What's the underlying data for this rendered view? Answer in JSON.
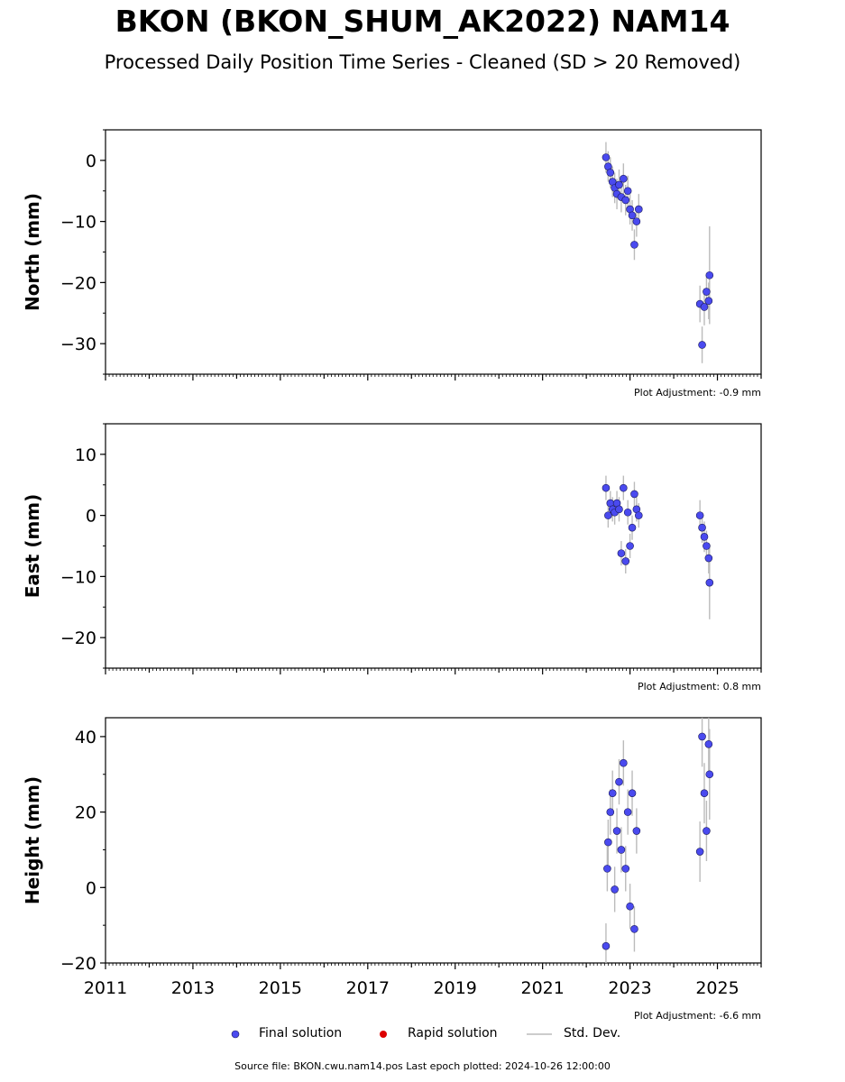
{
  "title": "BKON (BKON_SHUM_AK2022) NAM14",
  "subtitle": "Processed Daily Position Time Series - Cleaned (SD > 20 Removed)",
  "legend": {
    "final_label": "Final solution",
    "rapid_label": "Rapid solution",
    "std_label": "Std. Dev."
  },
  "source_line": "Source file: BKON.cwu.nam14.pos  Last epoch plotted: 2024-10-26 12:00:00",
  "colors": {
    "final": "#4a4aef",
    "final_edge": "#1a1a5a",
    "rapid": "#dd0000",
    "std": "#bbbbbb"
  },
  "chart_data": [
    {
      "type": "scatter",
      "ylabel": "North (mm)",
      "adjustment": "Plot Adjustment: -0.9 mm",
      "xlim": [
        2011,
        2026
      ],
      "ylim": [
        -35,
        5
      ],
      "yticks": [
        0,
        -10,
        -20,
        -30
      ],
      "ytick_labels": [
        "0",
        "−10",
        "−20",
        "−30"
      ],
      "series": [
        {
          "name": "Final solution",
          "x": [
            2022.45,
            2022.5,
            2022.55,
            2022.6,
            2022.65,
            2022.7,
            2022.75,
            2022.8,
            2022.85,
            2022.9,
            2022.95,
            2023.0,
            2023.05,
            2023.1,
            2023.15,
            2023.2,
            2024.6,
            2024.65,
            2024.7,
            2024.75,
            2024.8,
            2024.82
          ],
          "y": [
            0.5,
            -1.0,
            -2.0,
            -3.5,
            -4.5,
            -5.5,
            -4.0,
            -6.0,
            -3.0,
            -6.5,
            -5.0,
            -8.0,
            -9.0,
            -13.8,
            -10.0,
            -8.0,
            -23.5,
            -30.2,
            -24.0,
            -21.5,
            -23.0,
            -18.8
          ],
          "sd": [
            2.5,
            2.5,
            2.5,
            2.5,
            2.5,
            2.5,
            2.5,
            2.5,
            2.5,
            2.5,
            2.5,
            2.5,
            2.5,
            2.5,
            2.5,
            2.5,
            3.0,
            3.0,
            3.0,
            3.0,
            3.0,
            8.0
          ]
        }
      ]
    },
    {
      "type": "scatter",
      "ylabel": "East (mm)",
      "adjustment": "Plot Adjustment: 0.8 mm",
      "xlim": [
        2011,
        2026
      ],
      "ylim": [
        -25,
        15
      ],
      "yticks": [
        10,
        0,
        -10,
        -20
      ],
      "ytick_labels": [
        "10",
        "0",
        "−10",
        "−20"
      ],
      "series": [
        {
          "name": "Final solution",
          "x": [
            2022.45,
            2022.5,
            2022.55,
            2022.6,
            2022.65,
            2022.7,
            2022.75,
            2022.8,
            2022.85,
            2022.9,
            2022.95,
            2023.0,
            2023.05,
            2023.1,
            2023.15,
            2023.2,
            2024.6,
            2024.65,
            2024.7,
            2024.75,
            2024.8,
            2024.82
          ],
          "y": [
            4.5,
            0.0,
            2.0,
            1.0,
            0.5,
            2.0,
            1.0,
            -6.2,
            4.5,
            -7.5,
            0.5,
            -5.0,
            -2.0,
            3.5,
            1.0,
            0.0,
            0.0,
            -2.0,
            -3.5,
            -5.0,
            -7.0,
            -11.0
          ],
          "sd": [
            2.0,
            2.0,
            2.0,
            2.0,
            2.0,
            2.0,
            2.0,
            2.0,
            2.0,
            2.0,
            2.0,
            2.0,
            2.0,
            2.0,
            2.0,
            2.0,
            2.5,
            2.5,
            2.5,
            2.5,
            2.5,
            6.0
          ]
        }
      ]
    },
    {
      "type": "scatter",
      "ylabel": "Height (mm)",
      "adjustment": "Plot Adjustment: -6.6 mm",
      "xlim": [
        2011,
        2026
      ],
      "ylim": [
        -20,
        45
      ],
      "yticks": [
        40,
        20,
        0,
        -20
      ],
      "ytick_labels": [
        "40",
        "20",
        "0",
        "−20"
      ],
      "xticks": [
        2011,
        2013,
        2015,
        2017,
        2019,
        2021,
        2023,
        2025
      ],
      "xtick_labels": [
        "2011",
        "2013",
        "2015",
        "2017",
        "2019",
        "2021",
        "2023",
        "2025"
      ],
      "series": [
        {
          "name": "Final solution",
          "x": [
            2022.45,
            2022.48,
            2022.5,
            2022.55,
            2022.6,
            2022.65,
            2022.7,
            2022.75,
            2022.8,
            2022.85,
            2022.9,
            2022.95,
            2023.0,
            2023.05,
            2023.1,
            2023.15,
            2024.6,
            2024.65,
            2024.7,
            2024.75,
            2024.8,
            2024.82
          ],
          "y": [
            -15.5,
            5.0,
            12.0,
            20.0,
            25.0,
            -0.5,
            15.0,
            28.0,
            10.0,
            33.0,
            5.0,
            20.0,
            -5.0,
            25.0,
            -11.0,
            15.0,
            9.5,
            40.0,
            25.0,
            15.0,
            38.0,
            30.0
          ],
          "sd": [
            6.0,
            6.0,
            6.0,
            6.0,
            6.0,
            6.0,
            6.0,
            6.0,
            6.0,
            6.0,
            6.0,
            6.0,
            6.0,
            6.0,
            6.0,
            6.0,
            8.0,
            8.0,
            8.0,
            8.0,
            8.0,
            12.0
          ]
        }
      ]
    }
  ]
}
